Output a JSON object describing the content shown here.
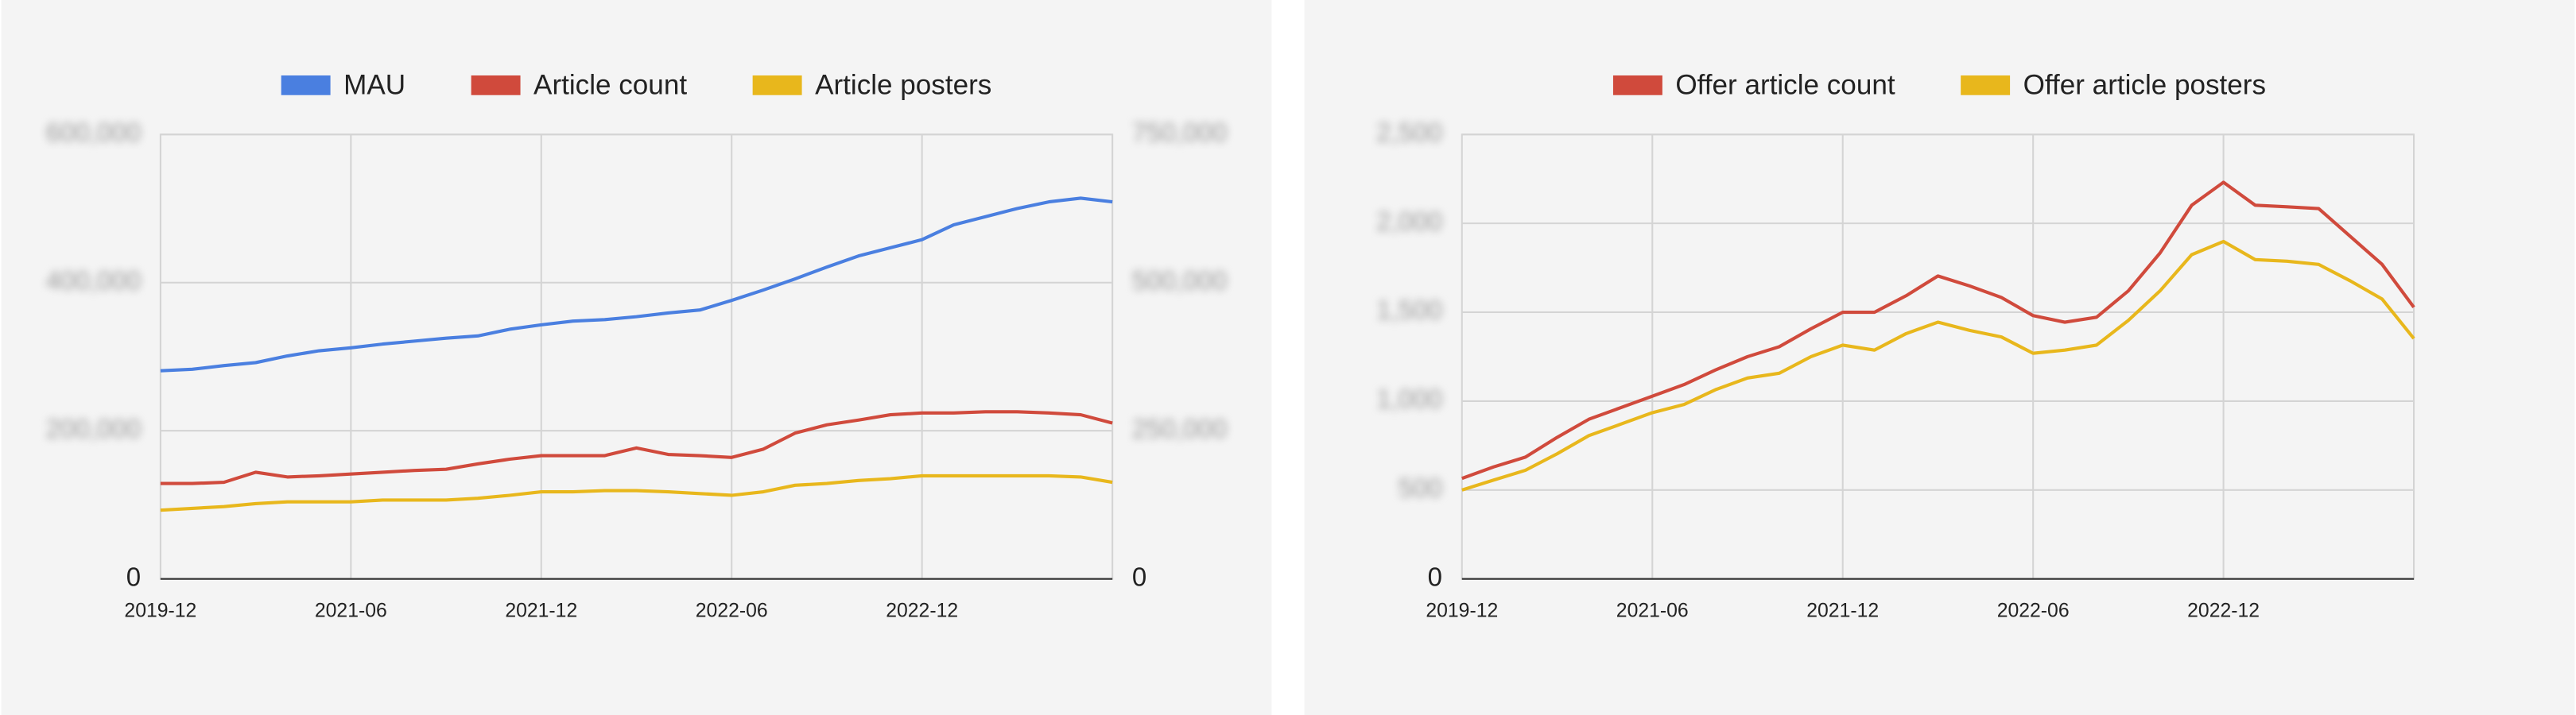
{
  "chart_data": [
    {
      "type": "line",
      "categories": [
        "2019-12",
        null,
        null,
        null,
        null,
        null,
        "2021-06",
        null,
        null,
        null,
        null,
        null,
        "2021-12",
        null,
        null,
        null,
        null,
        null,
        "2022-06",
        null,
        null,
        null,
        null,
        null,
        "2022-12",
        null,
        null,
        null,
        null,
        null,
        null
      ],
      "series": [
        {
          "name": "MAU",
          "color": "#4a7fe0",
          "values": [
            281000,
            283000,
            288000,
            292000,
            301000,
            308000,
            312000,
            317000,
            321000,
            325000,
            328000,
            337000,
            343000,
            348000,
            350000,
            354000,
            359000,
            363000,
            376000,
            390000,
            405000,
            421000,
            436000,
            447000,
            458000,
            478000,
            489000,
            500000,
            509000,
            514000,
            509000
          ]
        },
        {
          "name": "Article count",
          "color": "#d04a3c",
          "axis": "y2",
          "values": [
            161000,
            161000,
            163000,
            180000,
            172000,
            174000,
            177000,
            180000,
            183000,
            185000,
            194000,
            202000,
            208000,
            208000,
            208000,
            221000,
            210000,
            208000,
            205000,
            219000,
            246000,
            260000,
            268000,
            277000,
            280000,
            280000,
            282000,
            282000,
            280000,
            277000,
            263000
          ]
        },
        {
          "name": "Article posters",
          "color": "#e8b71c",
          "axis": "y2",
          "values": [
            116000,
            119000,
            122000,
            127000,
            130000,
            130000,
            130000,
            133000,
            133000,
            133000,
            136000,
            141000,
            147000,
            147000,
            149000,
            149000,
            147000,
            144000,
            141000,
            147000,
            158000,
            161000,
            166000,
            169000,
            174000,
            174000,
            174000,
            174000,
            174000,
            172000,
            163000
          ]
        }
      ],
      "ylim": [
        0,
        600000
      ],
      "yticks": [
        0,
        {
          "value": 200000,
          "label": "200,000"
        },
        {
          "value": 400000,
          "label": "400,000"
        },
        {
          "value": 600000,
          "label": "600,000"
        }
      ],
      "y2lim": [
        0,
        750000
      ],
      "y2ticks": [
        0,
        {
          "value": 250000,
          "label": "250,000"
        },
        {
          "value": 500000,
          "label": "500,000"
        },
        {
          "value": 750000,
          "label": "750,000"
        }
      ],
      "grid": true,
      "legend": "top"
    },
    {
      "type": "line",
      "categories": [
        "2019-12",
        null,
        null,
        null,
        null,
        null,
        "2021-06",
        null,
        null,
        null,
        null,
        null,
        "2021-12",
        null,
        null,
        null,
        null,
        null,
        "2022-06",
        null,
        null,
        null,
        null,
        null,
        "2022-12",
        null,
        null,
        null,
        null,
        null,
        null
      ],
      "series": [
        {
          "name": "Offer article count",
          "color": "#d04a3c",
          "values": [
            565,
            630,
            685,
            796,
            898,
            963,
            1028,
            1093,
            1176,
            1250,
            1306,
            1407,
            1500,
            1500,
            1593,
            1704,
            1648,
            1583,
            1481,
            1444,
            1472,
            1620,
            1833,
            2102,
            2231,
            2102,
            2093,
            2083,
            1926,
            1769,
            1528
          ]
        },
        {
          "name": "Offer article posters",
          "color": "#e8b71c",
          "values": [
            500,
            556,
            611,
            704,
            806,
            870,
            935,
            981,
            1065,
            1130,
            1157,
            1250,
            1315,
            1287,
            1380,
            1444,
            1398,
            1361,
            1269,
            1287,
            1315,
            1454,
            1620,
            1824,
            1898,
            1796,
            1787,
            1769,
            1676,
            1574,
            1352
          ]
        }
      ],
      "ylim": [
        0,
        2500
      ],
      "yticks": [
        0,
        {
          "value": 500,
          "label": "500"
        },
        {
          "value": 1000,
          "label": "1,000"
        },
        {
          "value": 1500,
          "label": "1,500"
        },
        {
          "value": 2000,
          "label": "2,000"
        },
        {
          "value": 2500,
          "label": "2,500"
        }
      ],
      "grid": true,
      "legend": "top"
    }
  ]
}
